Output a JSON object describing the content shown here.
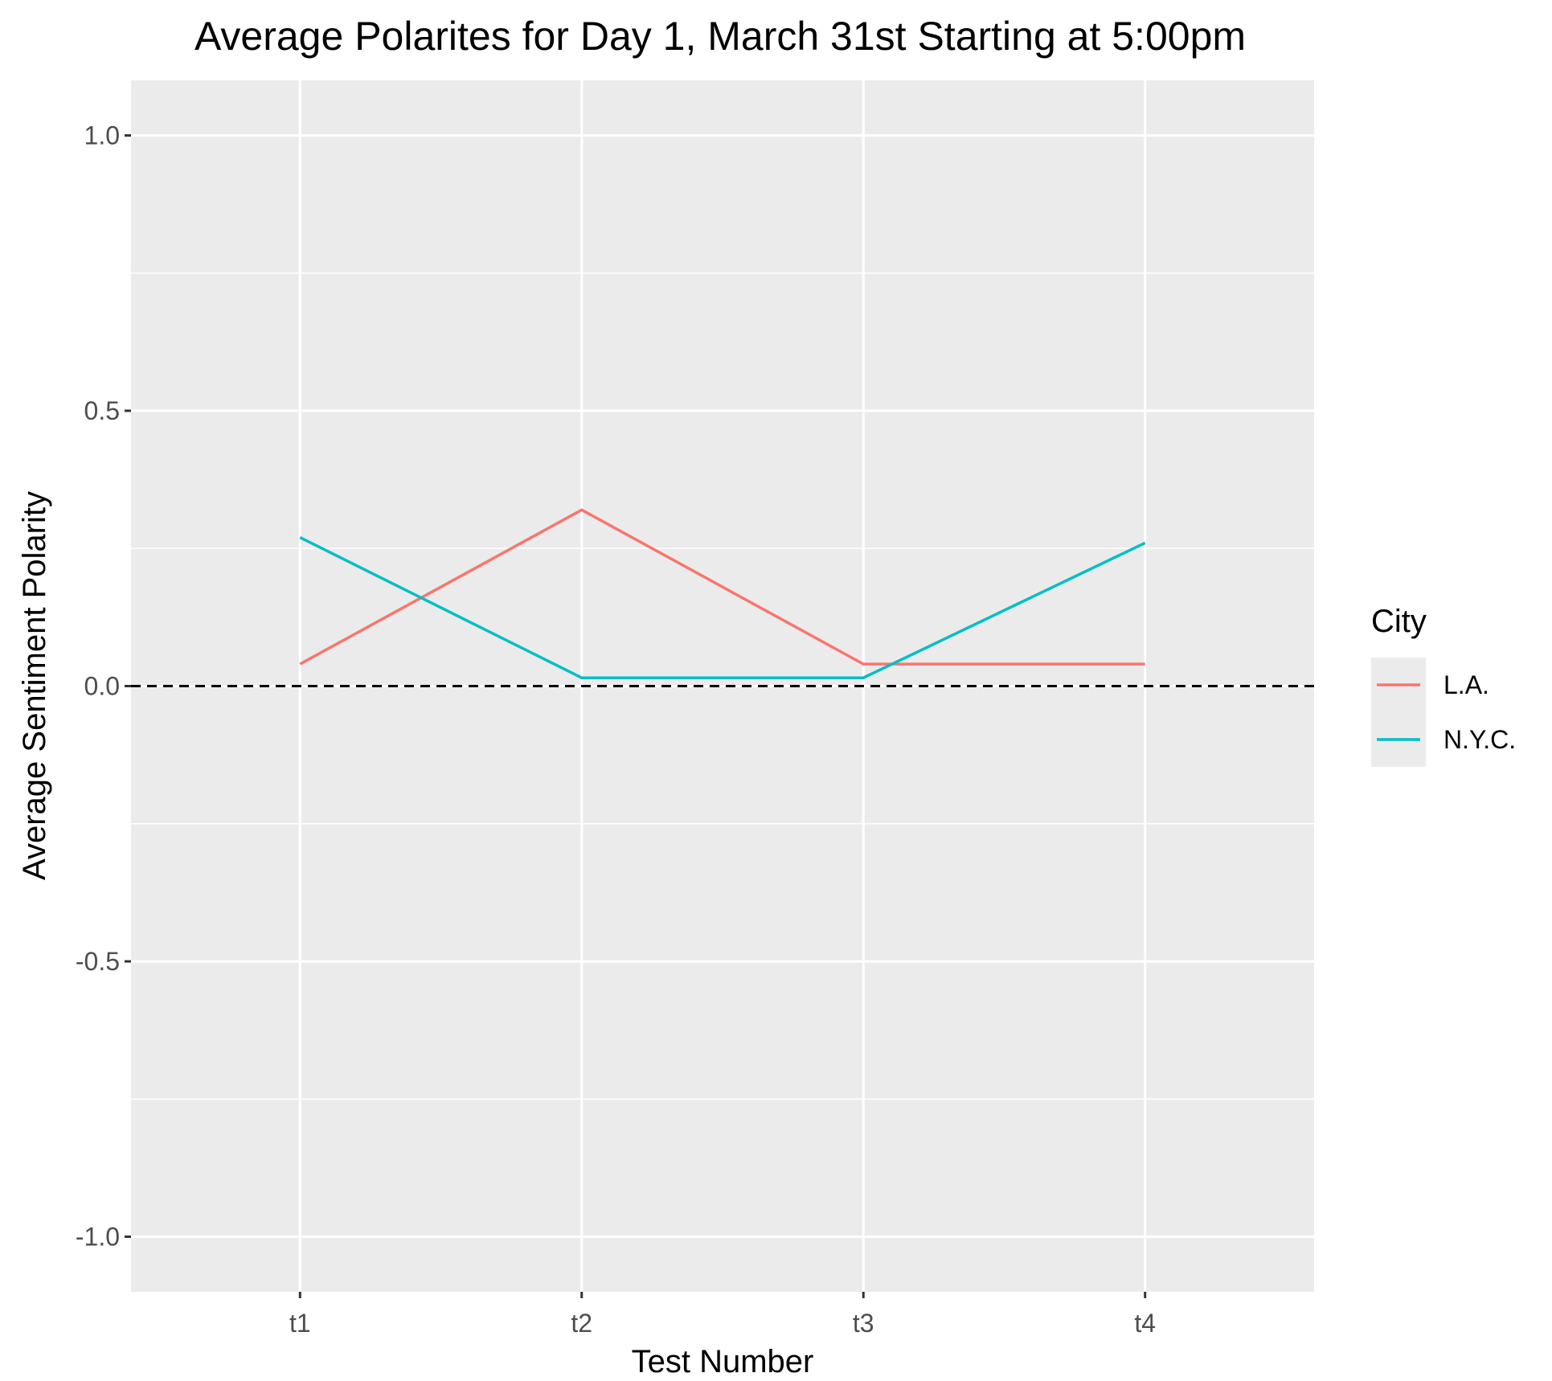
{
  "chart_data": {
    "type": "line",
    "title": "Average Polarites for Day 1, March 31st Starting at 5:00pm",
    "xlabel": "Test Number",
    "ylabel": "Average Sentiment Polarity",
    "categories": [
      "t1",
      "t2",
      "t3",
      "t4"
    ],
    "ylim": [
      -1.1,
      1.1
    ],
    "yticks": [
      -1.0,
      -0.5,
      0.0,
      0.5,
      1.0
    ],
    "ytick_labels": [
      "-1.0",
      "-0.5",
      "0.0",
      "0.5",
      "1.0"
    ],
    "reference_line": {
      "y": 0.0,
      "style": "dashed",
      "color": "#000000"
    },
    "legend": {
      "title": "City",
      "position": "right"
    },
    "grid": true,
    "series": [
      {
        "name": "L.A.",
        "color": "#F8766D",
        "values": [
          0.04,
          0.32,
          0.04,
          0.04
        ]
      },
      {
        "name": "N.Y.C.",
        "color": "#00BFC4",
        "values": [
          0.27,
          0.015,
          0.015,
          0.26
        ]
      }
    ]
  }
}
